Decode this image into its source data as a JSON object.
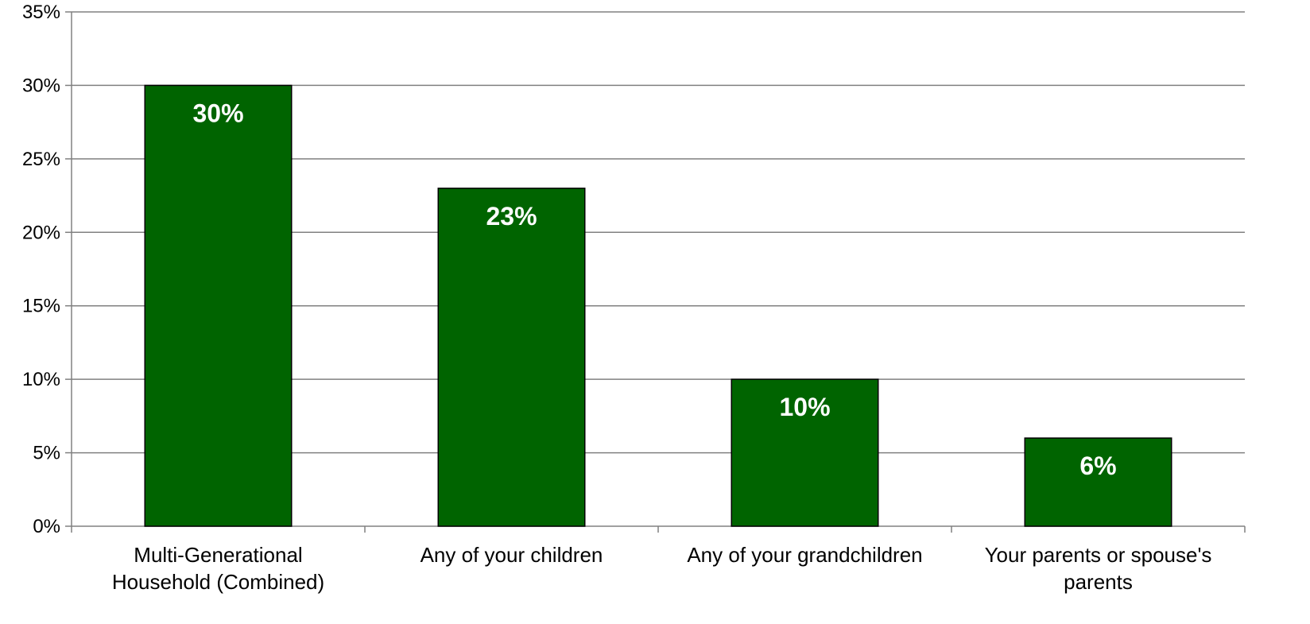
{
  "chart_data": {
    "type": "bar",
    "title": "",
    "categories": [
      "Multi-Generational Household (Combined)",
      "Any of your children",
      "Any of your grandchildren",
      "Your parents or spouse's parents"
    ],
    "category_label_lines": [
      [
        "Multi-Generational",
        "Household (Combined)"
      ],
      [
        "Any of your children"
      ],
      [
        "Any of your grandchildren"
      ],
      [
        "Your parents or spouse's",
        "parents"
      ]
    ],
    "values": [
      30,
      23,
      10,
      6
    ],
    "data_labels": [
      "30%",
      "23%",
      "10%",
      "6%"
    ],
    "ylim": [
      0,
      35
    ],
    "y_ticks": [
      0,
      5,
      10,
      15,
      20,
      25,
      30,
      35
    ],
    "y_tick_labels": [
      "0%",
      "5%",
      "10%",
      "15%",
      "20%",
      "25%",
      "30%",
      "35%"
    ],
    "xlabel": "",
    "ylabel": "",
    "grid": true,
    "bar_color": "#006400",
    "bar_edge_color": "#000000",
    "data_label_color": "#ffffff",
    "grid_color": "#808080"
  }
}
